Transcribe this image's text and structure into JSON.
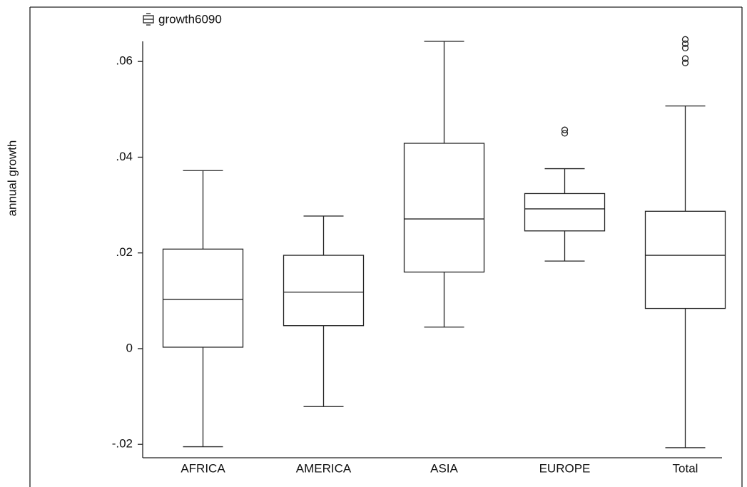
{
  "chart_data": {
    "type": "box",
    "ylabel": "annual growth",
    "series_name": "growth6090",
    "categories": [
      "AFRICA",
      "AMERICA",
      "ASIA",
      "EUROPE",
      "Total"
    ],
    "boxes": [
      {
        "min": -0.0205,
        "q1": 0.0003,
        "median": 0.0103,
        "q3": 0.0208,
        "max": 0.0372,
        "outliers": []
      },
      {
        "min": -0.0121,
        "q1": 0.0048,
        "median": 0.0118,
        "q3": 0.0195,
        "max": 0.0277,
        "outliers": []
      },
      {
        "min": 0.0045,
        "q1": 0.016,
        "median": 0.0271,
        "q3": 0.0429,
        "max": 0.0642,
        "outliers": []
      },
      {
        "min": 0.0183,
        "q1": 0.0246,
        "median": 0.0292,
        "q3": 0.0324,
        "max": 0.0376,
        "outliers": [
          0.0457,
          0.045
        ]
      },
      {
        "min": -0.0207,
        "q1": 0.0084,
        "median": 0.0195,
        "q3": 0.0287,
        "max": 0.0507,
        "outliers": [
          0.0646,
          0.0637,
          0.0628,
          0.0606,
          0.0597
        ]
      }
    ],
    "ylim": [
      -0.0228,
      0.0642
    ],
    "yticks": [
      {
        "value": -0.02,
        "label": "-.02"
      },
      0,
      {
        "value": 0.02,
        "label": ".02"
      },
      {
        "value": 0.04,
        "label": ".04"
      },
      {
        "value": 0.06,
        "label": ".06"
      }
    ],
    "color": "#222222"
  }
}
